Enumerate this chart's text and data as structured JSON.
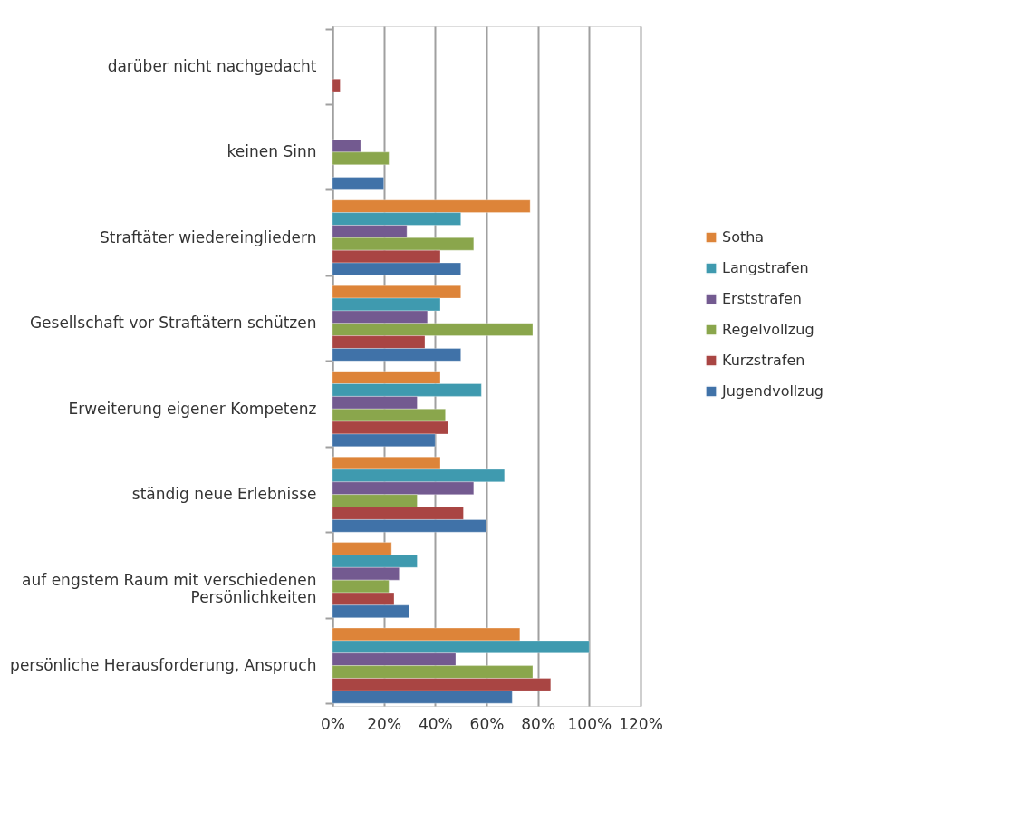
{
  "chart_data": {
    "type": "bar",
    "orientation": "horizontal",
    "categories": [
      "darüber nicht nachgedacht",
      "keinen Sinn",
      "Straftäter wiedereingliedern",
      "Gesellschaft vor Straftätern schützen",
      "Erweiterung eigener Kompetenz",
      "ständig neue Erlebnisse",
      "auf engstem Raum mit verschiedenen Persönlichkeiten",
      "persönliche Herausforderung, Anspruch"
    ],
    "series": [
      {
        "name": "Sotha",
        "color": "#dd8439",
        "values": [
          null,
          null,
          77,
          50,
          42,
          42,
          23,
          73
        ]
      },
      {
        "name": "Langstrafen",
        "color": "#3f9aaf",
        "values": [
          null,
          null,
          50,
          42,
          58,
          67,
          33,
          100
        ]
      },
      {
        "name": "Erststrafen",
        "color": "#735a90",
        "values": [
          null,
          11,
          29,
          37,
          33,
          55,
          26,
          48
        ]
      },
      {
        "name": "Regelvollzug",
        "color": "#8aa64c",
        "values": [
          null,
          22,
          55,
          78,
          44,
          33,
          22,
          78
        ]
      },
      {
        "name": "Kurzstrafen",
        "color": "#a94543",
        "values": [
          3,
          null,
          42,
          36,
          45,
          51,
          24,
          85
        ]
      },
      {
        "name": "Jugendvollzug",
        "color": "#4072a8",
        "values": [
          null,
          20,
          50,
          50,
          40,
          60,
          30,
          70
        ]
      }
    ],
    "xlim": [
      0,
      120
    ],
    "xticks": [
      {
        "value": 0,
        "label": "0%"
      },
      {
        "value": 20,
        "label": "20%"
      },
      {
        "value": 40,
        "label": "40%"
      },
      {
        "value": 60,
        "label": "60%"
      },
      {
        "value": 80,
        "label": "80%"
      },
      {
        "value": 100,
        "label": "100%"
      },
      {
        "value": 120,
        "label": "120%"
      }
    ],
    "grid": "x",
    "legend": "right"
  }
}
